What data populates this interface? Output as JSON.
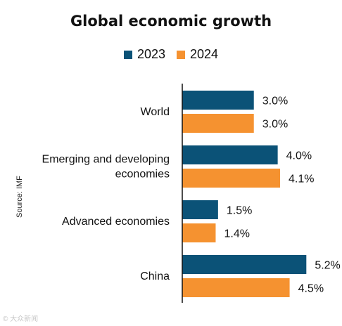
{
  "chart_data": {
    "type": "bar",
    "orientation": "horizontal",
    "title": "Global economic growth",
    "categories": [
      [
        "World"
      ],
      [
        "Emerging and developing",
        "economies"
      ],
      [
        "Advanced economies"
      ],
      [
        "China"
      ]
    ],
    "series": [
      {
        "name": "2023",
        "color": "#0b5277",
        "values": [
          3.0,
          4.0,
          1.5,
          5.2
        ],
        "labels": [
          "3.0%",
          "4.0%",
          "1.5%",
          "5.2%"
        ]
      },
      {
        "name": "2024",
        "color": "#f59230",
        "values": [
          3.0,
          4.1,
          1.4,
          4.5
        ],
        "labels": [
          "3.0%",
          "4.1%",
          "1.4%",
          "4.5%"
        ]
      }
    ],
    "xlim": [
      0,
      6.4
    ],
    "grid": false,
    "legend_position": "top"
  },
  "source": "Source: IMF",
  "watermark": "© 大众新闻"
}
